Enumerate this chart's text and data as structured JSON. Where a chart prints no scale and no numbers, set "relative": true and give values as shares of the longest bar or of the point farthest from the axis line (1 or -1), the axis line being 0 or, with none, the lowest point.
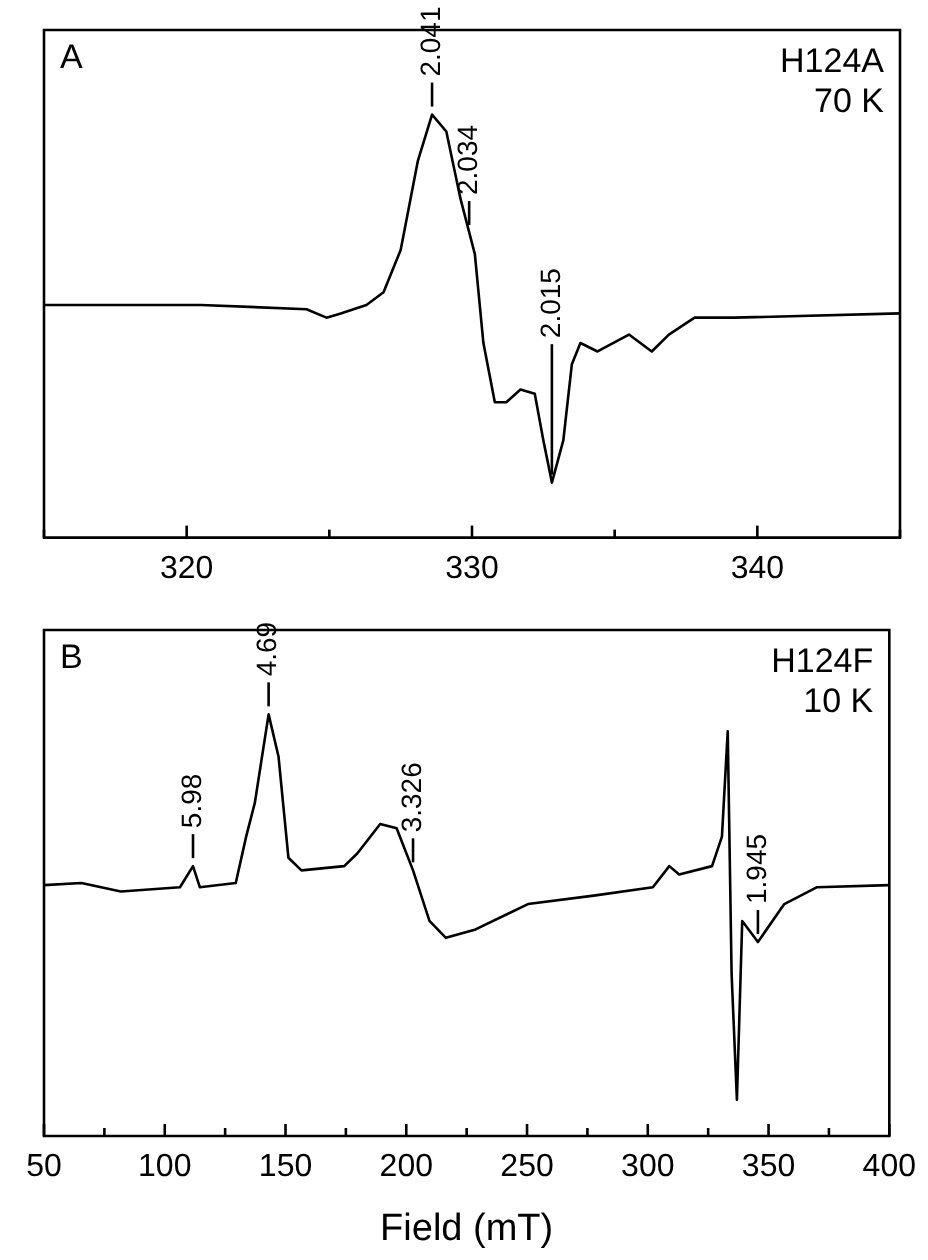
{
  "chart_data": [
    {
      "type": "line",
      "relative": true,
      "tick_labels": "x",
      "grid": false,
      "legend": false,
      "marker": "none",
      "line_style": "solid",
      "xlim": [
        315,
        345
      ],
      "xticks": [
        {
          "value": 315,
          "label": null
        },
        320,
        {
          "value": 325,
          "label": null
        },
        330,
        {
          "value": 335,
          "label": null
        },
        340,
        {
          "value": 345,
          "label": null
        }
      ],
      "annotations": [
        "A",
        "H124A",
        "70 K",
        {
          "text": "2.041",
          "x": 328.6,
          "y": 1.0
        },
        {
          "text": "2.034",
          "x": 329.9,
          "y": 0.72
        },
        {
          "text": "2.015",
          "x": 332.8,
          "y": 0.13
        }
      ],
      "series": [
        {
          "color": "#000000",
          "x": [
            315.0,
            320.5,
            324.2,
            324.9,
            325.4,
            326.3,
            326.9,
            327.5,
            328.1,
            328.6,
            329.1,
            329.6,
            330.1,
            330.4,
            330.8,
            331.2,
            331.7,
            332.2,
            332.5,
            332.8,
            333.2,
            333.5,
            333.8,
            334.4,
            335.5,
            336.3,
            336.9,
            337.8,
            339.2,
            345.0
          ],
          "values": [
            0.55,
            0.55,
            0.54,
            0.52,
            0.53,
            0.55,
            0.58,
            0.68,
            0.89,
            1.0,
            0.96,
            0.8,
            0.67,
            0.46,
            0.32,
            0.32,
            0.35,
            0.34,
            0.23,
            0.13,
            0.23,
            0.41,
            0.46,
            0.44,
            0.48,
            0.44,
            0.48,
            0.52,
            0.52,
            0.53
          ]
        }
      ]
    },
    {
      "type": "line",
      "relative": true,
      "tick_labels": "x",
      "grid": false,
      "legend": false,
      "marker": "none",
      "line_style": "solid",
      "xlabel": "Field (mT)",
      "xlim": [
        50,
        400
      ],
      "xticks": [
        50,
        {
          "value": 75,
          "label": null
        },
        100,
        {
          "value": 125,
          "label": null
        },
        150,
        {
          "value": 175,
          "label": null
        },
        200,
        {
          "value": 225,
          "label": null
        },
        250,
        {
          "value": 275,
          "label": null
        },
        300,
        {
          "value": 325,
          "label": null
        },
        350,
        {
          "value": 375,
          "label": null
        },
        400
      ],
      "annotations": [
        "B",
        "H124F",
        "10 K",
        {
          "text": "5.98",
          "x": 111.7,
          "y": 0.64
        },
        {
          "text": "4.69",
          "x": 143.0,
          "y": 1.0
        },
        {
          "text": "3.326",
          "x": 202.8,
          "y": 0.63
        },
        {
          "text": "1.945",
          "x": 345.6,
          "y": 0.46
        }
      ],
      "series": [
        {
          "color": "#000000",
          "x": [
            50,
            65.5,
            81.8,
            106.3,
            111.7,
            114.5,
            129.4,
            133.7,
            137.3,
            143.0,
            147.1,
            151.2,
            156.6,
            174.3,
            179.7,
            189.2,
            196.0,
            202.8,
            209.6,
            216.4,
            228.7,
            250.4,
            277.6,
            302.1,
            308.9,
            313.0,
            326.6,
            330.7,
            333.1,
            334.7,
            336.9,
            339.1,
            345.6,
            356.5,
            370.1,
            400
          ],
          "values": [
            0.595,
            0.6,
            0.58,
            0.59,
            0.64,
            0.59,
            0.6,
            0.71,
            0.79,
            1.0,
            0.9,
            0.66,
            0.63,
            0.64,
            0.67,
            0.74,
            0.73,
            0.63,
            0.51,
            0.47,
            0.49,
            0.55,
            0.57,
            0.59,
            0.64,
            0.62,
            0.64,
            0.71,
            0.96,
            0.385,
            0.086,
            0.51,
            0.46,
            0.55,
            0.59,
            0.595
          ]
        }
      ]
    }
  ]
}
